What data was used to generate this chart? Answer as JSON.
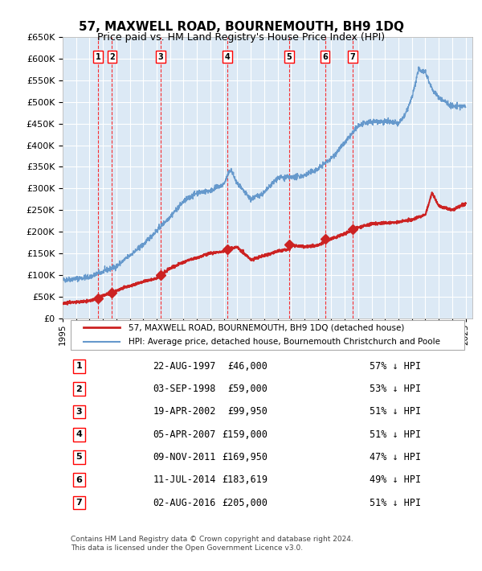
{
  "title": "57, MAXWELL ROAD, BOURNEMOUTH, BH9 1DQ",
  "subtitle": "Price paid vs. HM Land Registry's House Price Index (HPI)",
  "footer": "Contains HM Land Registry data © Crown copyright and database right 2024.\nThis data is licensed under the Open Government Licence v3.0.",
  "legend_line1": "57, MAXWELL ROAD, BOURNEMOUTH, BH9 1DQ (detached house)",
  "legend_line2": "HPI: Average price, detached house, Bournemouth Christchurch and Poole",
  "sales": [
    {
      "num": 1,
      "date": "22-AUG-1997",
      "price": 46000,
      "pct": "57% ↓ HPI",
      "year": 1997.64
    },
    {
      "num": 2,
      "date": "03-SEP-1998",
      "price": 59000,
      "pct": "53% ↓ HPI",
      "year": 1998.67
    },
    {
      "num": 3,
      "date": "19-APR-2002",
      "price": 99950,
      "pct": "51% ↓ HPI",
      "year": 2002.3
    },
    {
      "num": 4,
      "date": "05-APR-2007",
      "price": 159000,
      "pct": "51% ↓ HPI",
      "year": 2007.26
    },
    {
      "num": 5,
      "date": "09-NOV-2011",
      "price": 169950,
      "pct": "47% ↓ HPI",
      "year": 2011.86
    },
    {
      "num": 6,
      "date": "11-JUL-2014",
      "price": 183619,
      "pct": "49% ↓ HPI",
      "year": 2014.53
    },
    {
      "num": 7,
      "date": "02-AUG-2016",
      "price": 205000,
      "pct": "51% ↓ HPI",
      "year": 2016.59
    }
  ],
  "hpi_color": "#6699cc",
  "price_color": "#cc2222",
  "marker_color": "#cc2222",
  "bg_color": "#dce9f5",
  "grid_color": "#ffffff",
  "ylim": [
    0,
    650000
  ],
  "yticks": [
    0,
    50000,
    100000,
    150000,
    200000,
    250000,
    300000,
    350000,
    400000,
    450000,
    500000,
    550000,
    600000,
    650000
  ],
  "xlim_start": 1995.0,
  "xlim_end": 2025.5,
  "xtick_years": [
    1995,
    1996,
    1997,
    1998,
    1999,
    2000,
    2001,
    2002,
    2003,
    2004,
    2005,
    2006,
    2007,
    2008,
    2009,
    2010,
    2011,
    2012,
    2013,
    2014,
    2015,
    2016,
    2017,
    2018,
    2019,
    2020,
    2021,
    2022,
    2023,
    2024,
    2025
  ]
}
